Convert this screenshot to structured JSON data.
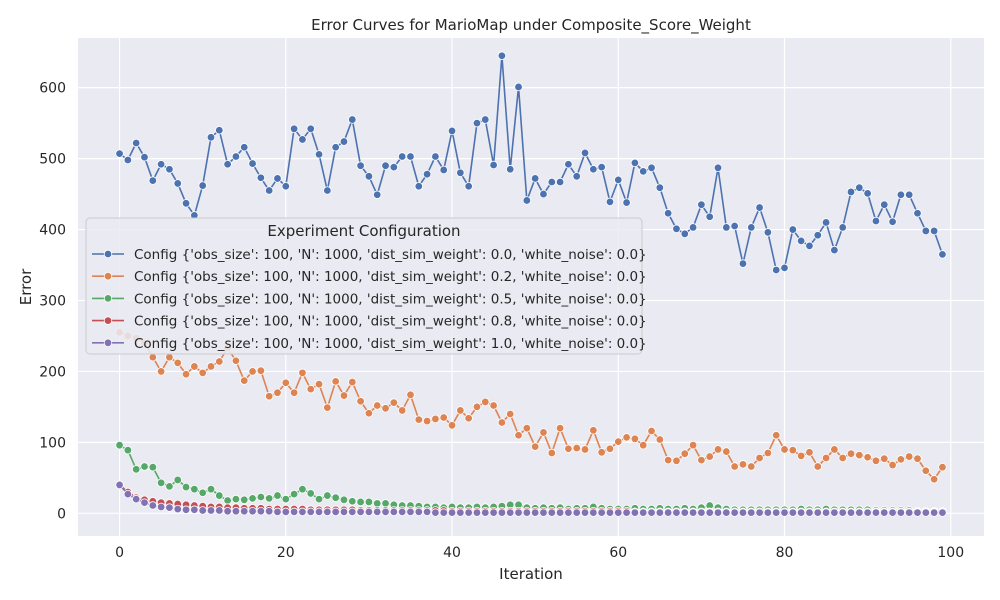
{
  "chart_data": {
    "type": "line",
    "title": "Error Curves for MarioMap under Composite_Score_Weight",
    "xlabel": "Iteration",
    "ylabel": "Error",
    "xlim": [
      -5,
      104
    ],
    "ylim": [
      -32,
      670
    ],
    "xticks": [
      0,
      20,
      40,
      60,
      80,
      100
    ],
    "yticks": [
      0,
      100,
      200,
      300,
      400,
      500,
      600
    ],
    "grid": true,
    "background": "#eaeaf2",
    "legend_title": "Experiment Configuration",
    "legend_position": "center-left",
    "series": [
      {
        "name": "Config {'obs_size': 100, 'N': 1000, 'dist_sim_weight': 0.0, 'white_noise': 0.0}",
        "color": "#4c72b0",
        "values": [
          507,
          498,
          522,
          502,
          469,
          492,
          485,
          465,
          437,
          420,
          462,
          530,
          540,
          492,
          503,
          516,
          493,
          473,
          455,
          472,
          461,
          542,
          527,
          542,
          506,
          455,
          516,
          524,
          555,
          490,
          475,
          449,
          490,
          488,
          503,
          503,
          461,
          478,
          503,
          484,
          539,
          480,
          461,
          550,
          555,
          491,
          645,
          485,
          601,
          441,
          472,
          450,
          467,
          467,
          492,
          475,
          508,
          485,
          488,
          439,
          470,
          438,
          494,
          482,
          487,
          459,
          423,
          401,
          394,
          403,
          435,
          418,
          487,
          403,
          405,
          352,
          403,
          431,
          396,
          343,
          346,
          400,
          384,
          377,
          392,
          410,
          371,
          403,
          453,
          459,
          451,
          412,
          435,
          411,
          449,
          449,
          423,
          398,
          398,
          365
        ]
      },
      {
        "name": "Config {'obs_size': 100, 'N': 1000, 'dist_sim_weight': 0.2, 'white_noise': 0.0}",
        "color": "#dd8452",
        "values": [
          255,
          250,
          247,
          240,
          220,
          200,
          220,
          212,
          196,
          207,
          198,
          207,
          214,
          233,
          215,
          187,
          200,
          201,
          165,
          170,
          184,
          170,
          198,
          175,
          182,
          149,
          186,
          166,
          185,
          158,
          141,
          152,
          148,
          156,
          145,
          167,
          132,
          130,
          133,
          135,
          124,
          145,
          134,
          150,
          157,
          152,
          128,
          140,
          110,
          120,
          94,
          114,
          85,
          120,
          91,
          92,
          90,
          117,
          86,
          91,
          101,
          107,
          105,
          96,
          116,
          104,
          75,
          74,
          84,
          96,
          75,
          80,
          90,
          87,
          66,
          69,
          66,
          78,
          85,
          110,
          90,
          89,
          81,
          86,
          66,
          78,
          90,
          78,
          84,
          82,
          79,
          74,
          77,
          68,
          76,
          80,
          77,
          60,
          48,
          65
        ]
      },
      {
        "name": "Config {'obs_size': 100, 'N': 1000, 'dist_sim_weight': 0.5, 'white_noise': 0.0}",
        "color": "#55a868",
        "values": [
          96,
          89,
          62,
          66,
          65,
          43,
          38,
          47,
          37,
          34,
          29,
          34,
          25,
          18,
          20,
          19,
          21,
          23,
          21,
          25,
          20,
          27,
          34,
          28,
          20,
          25,
          22,
          19,
          17,
          16,
          16,
          14,
          14,
          12,
          11,
          11,
          10,
          9,
          9,
          8,
          9,
          8,
          8,
          9,
          8,
          9,
          10,
          12,
          12,
          8,
          7,
          8,
          7,
          8,
          6,
          7,
          7,
          9,
          7,
          6,
          6,
          6,
          7,
          6,
          6,
          7,
          6,
          6,
          7,
          6,
          8,
          11,
          8,
          6,
          5,
          5,
          5,
          5,
          5,
          5,
          5,
          5,
          6,
          5,
          5,
          6,
          5,
          5,
          5,
          5,
          5,
          4,
          4,
          4,
          4,
          4,
          3,
          3,
          3,
          3
        ]
      },
      {
        "name": "Config {'obs_size': 100, 'N': 1000, 'dist_sim_weight': 0.8, 'white_noise': 0.0}",
        "color": "#c44e52",
        "values": [
          40,
          30,
          22,
          19,
          17,
          15,
          14,
          13,
          12,
          11,
          10,
          9,
          9,
          8,
          8,
          7,
          7,
          7,
          6,
          6,
          6,
          6,
          6,
          5,
          5,
          5,
          5,
          5,
          5,
          4,
          4,
          4,
          4,
          4,
          4,
          4,
          4,
          4,
          4,
          4,
          3,
          3,
          3,
          3,
          3,
          3,
          3,
          3,
          3,
          3,
          3,
          3,
          3,
          3,
          3,
          3,
          3,
          3,
          3,
          3,
          3,
          3,
          2,
          2,
          2,
          2,
          2,
          2,
          2,
          2,
          2,
          2,
          2,
          2,
          2,
          2,
          2,
          2,
          2,
          2,
          2,
          2,
          2,
          2,
          2,
          2,
          2,
          2,
          2,
          2,
          2,
          2,
          2,
          2,
          2,
          2,
          2,
          2,
          2,
          2
        ]
      },
      {
        "name": "Config {'obs_size': 100, 'N': 1000, 'dist_sim_weight': 1.0, 'white_noise': 0.0}",
        "color": "#8172b3",
        "values": [
          40,
          27,
          20,
          15,
          11,
          9,
          8,
          6,
          5,
          5,
          4,
          4,
          4,
          3,
          3,
          3,
          3,
          3,
          3,
          2,
          2,
          2,
          2,
          2,
          2,
          2,
          2,
          2,
          2,
          2,
          2,
          2,
          2,
          2,
          2,
          2,
          2,
          2,
          1,
          1,
          1,
          1,
          1,
          1,
          1,
          1,
          1,
          1,
          1,
          1,
          1,
          1,
          1,
          1,
          1,
          1,
          1,
          1,
          1,
          1,
          1,
          1,
          1,
          1,
          1,
          1,
          1,
          1,
          1,
          1,
          1,
          1,
          1,
          1,
          1,
          1,
          1,
          1,
          1,
          1,
          1,
          1,
          1,
          1,
          1,
          1,
          1,
          1,
          1,
          1,
          1,
          1,
          1,
          1,
          1,
          1,
          1,
          1,
          1,
          1
        ]
      }
    ]
  }
}
